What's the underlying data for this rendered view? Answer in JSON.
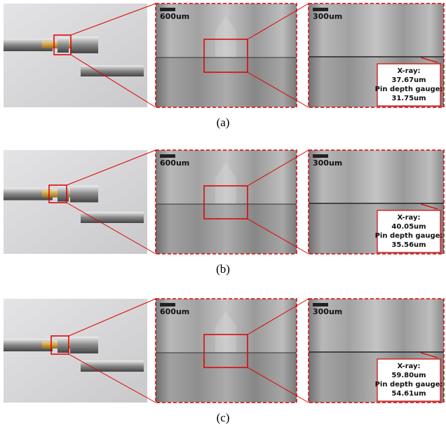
{
  "panels": [
    {
      "label": "(a)",
      "middle_scale": "600um",
      "right_scale": "300um",
      "annotation": [
        "X-ray:",
        "37.67um",
        "Pin depth gauge:",
        "31.75um"
      ]
    },
    {
      "label": "(b)",
      "middle_scale": "600um",
      "right_scale": "300um",
      "annotation": [
        "X-ray:",
        "40.05um",
        "Pin depth gauge:",
        "35.56um"
      ]
    },
    {
      "label": "(c)",
      "middle_scale": "600um",
      "right_scale": "300um",
      "annotation": [
        "X-ray:",
        "59.80um",
        "Pin depth gauge:",
        "54.61um"
      ]
    }
  ]
}
